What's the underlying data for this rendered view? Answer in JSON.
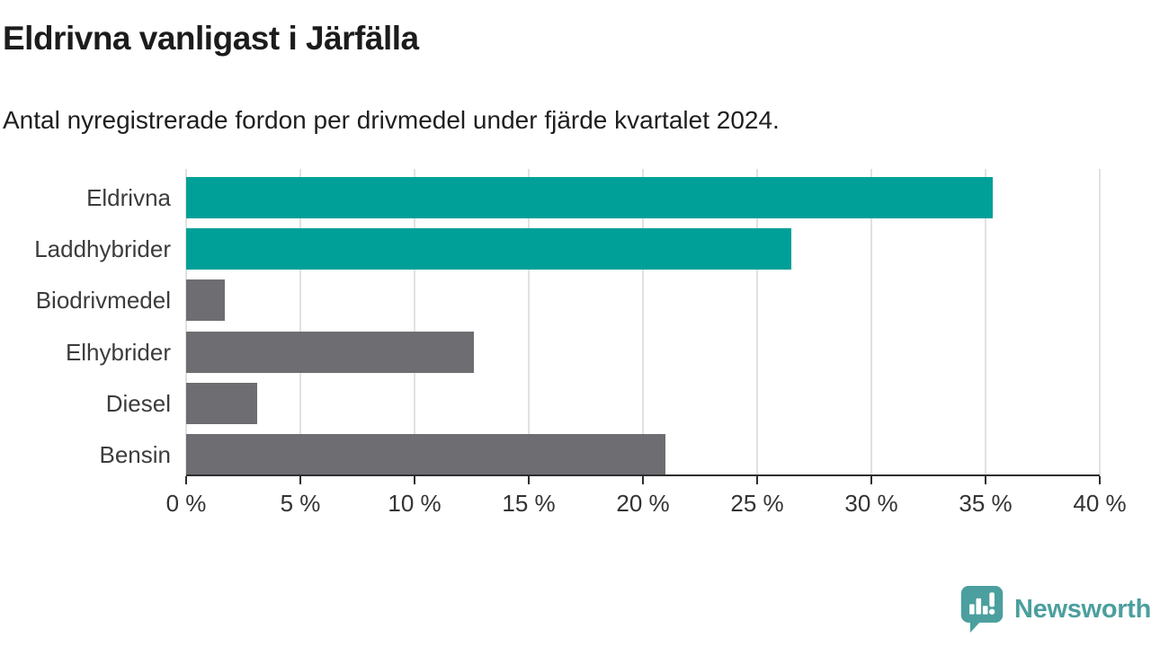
{
  "chart_data": {
    "type": "bar",
    "orientation": "horizontal",
    "title": "Eldrivna vanligast i Järfälla",
    "subtitle": "Antal nyregistrerade fordon per drivmedel under fjärde kvartalet 2024.",
    "categories": [
      "Eldrivna",
      "Laddhybrider",
      "Biodrivmedel",
      "Elhybrider",
      "Diesel",
      "Bensin"
    ],
    "values": [
      35.3,
      26.5,
      1.7,
      12.6,
      3.1,
      21.0
    ],
    "unit": "%",
    "xlim": [
      0,
      40
    ],
    "x_ticks": [
      0,
      5,
      10,
      15,
      20,
      25,
      30,
      35,
      40
    ],
    "x_tick_suffix": " %",
    "bar_colors": [
      "#00a099",
      "#00a099",
      "#6d6d72",
      "#6d6d72",
      "#6d6d72",
      "#6d6d72"
    ],
    "accent_color": "#00a099",
    "neutral_color": "#6d6d72",
    "gridline_color": "#e1e1e1",
    "axis_color": "#2e2e2e",
    "grid": true,
    "legend": false
  },
  "footer": {
    "logo_text": "Newsworthy",
    "logo_color": "#4b9f9e",
    "logo_icon": "newsworthy-speech-bubble-chart-icon"
  }
}
